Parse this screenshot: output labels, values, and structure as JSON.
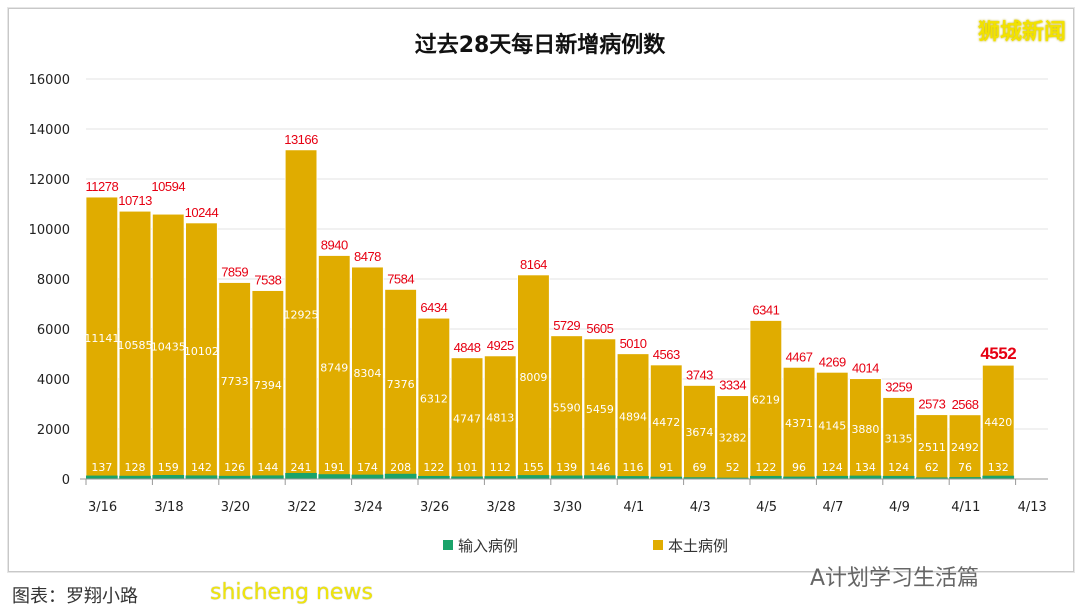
{
  "watermarks": {
    "top_right": "狮城新闻",
    "credit": "图表：罗翔小路",
    "brand": "shicheng news",
    "wechat": "A计划学习生活篇"
  },
  "colors": {
    "local": "#e0ac00",
    "imported": "#1aa36a",
    "total_label": "#e60012",
    "inner_label": "#ffffff"
  },
  "chart_data": {
    "type": "bar",
    "stacked": true,
    "title": "过去28天每日新增病例数",
    "xlabel": "",
    "ylabel": "",
    "ylim": [
      0,
      16000
    ],
    "yticks": [
      0,
      2000,
      4000,
      6000,
      8000,
      10000,
      12000,
      14000,
      16000
    ],
    "grid": true,
    "legend_position": "bottom",
    "categories": [
      "3/16",
      "3/17",
      "3/18",
      "3/19",
      "3/20",
      "3/21",
      "3/22",
      "3/23",
      "3/24",
      "3/25",
      "3/26",
      "3/27",
      "3/28",
      "3/29",
      "3/30",
      "3/31",
      "4/1",
      "4/2",
      "4/3",
      "4/4",
      "4/5",
      "4/6",
      "4/7",
      "4/8",
      "4/9",
      "4/10",
      "4/11",
      "4/12"
    ],
    "xtick_labels": [
      "3/16",
      "3/18",
      "3/20",
      "3/22",
      "3/24",
      "3/26",
      "3/28",
      "3/30",
      "4/1",
      "4/3",
      "4/5",
      "4/7",
      "4/9",
      "4/11",
      "4/13"
    ],
    "series": [
      {
        "name": "输入病例",
        "values": [
          137,
          128,
          159,
          142,
          126,
          144,
          241,
          191,
          174,
          208,
          122,
          101,
          112,
          155,
          139,
          146,
          116,
          91,
          69,
          52,
          122,
          96,
          124,
          134,
          124,
          62,
          76,
          132
        ]
      },
      {
        "name": "本土病例",
        "values": [
          11141,
          10585,
          10435,
          10102,
          7733,
          7394,
          12925,
          8749,
          8304,
          7376,
          6312,
          4747,
          4813,
          8009,
          5590,
          5459,
          4894,
          4472,
          3674,
          3282,
          6219,
          4371,
          4145,
          3880,
          3135,
          2511,
          2492,
          4420
        ]
      }
    ],
    "totals": [
      11278,
      10713,
      10594,
      10244,
      7859,
      7538,
      13166,
      8940,
      8478,
      7584,
      6434,
      4848,
      4925,
      8164,
      5729,
      5605,
      5010,
      4563,
      3743,
      3334,
      6341,
      4467,
      4269,
      4014,
      3259,
      2573,
      2568,
      4552
    ]
  }
}
